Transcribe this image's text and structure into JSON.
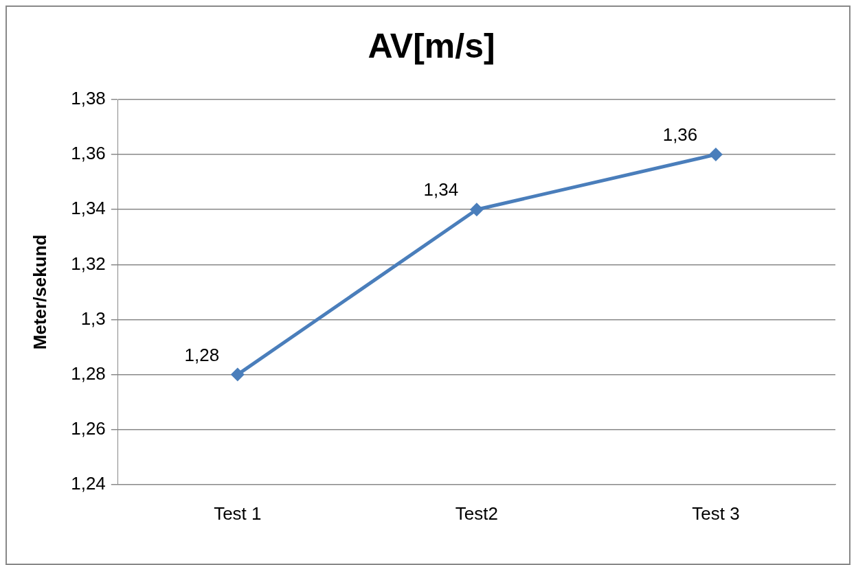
{
  "chart_data": {
    "type": "line",
    "title": "AV[m/s]",
    "ylabel": "Meter/sekund",
    "categories": [
      "Test 1",
      "Test2",
      "Test 3"
    ],
    "series": [
      {
        "color": "#4a7ebb",
        "values": [
          1.28,
          1.34,
          1.36
        ],
        "value_labels": [
          "1,28",
          "1,34",
          "1,36"
        ]
      }
    ],
    "ylim": [
      1.24,
      1.38
    ],
    "yticks": [
      {
        "value": 1.24,
        "label": "1,24"
      },
      {
        "value": 1.26,
        "label": "1,26"
      },
      {
        "value": 1.28,
        "label": "1,28"
      },
      {
        "value": 1.3,
        "label": "1,3"
      },
      {
        "value": 1.32,
        "label": "1,32"
      },
      {
        "value": 1.34,
        "label": "1,34"
      },
      {
        "value": 1.36,
        "label": "1,36"
      },
      {
        "value": 1.38,
        "label": "1,38"
      }
    ],
    "grid": "y",
    "legend": false,
    "marker": "diamond",
    "line_style": "solid"
  }
}
